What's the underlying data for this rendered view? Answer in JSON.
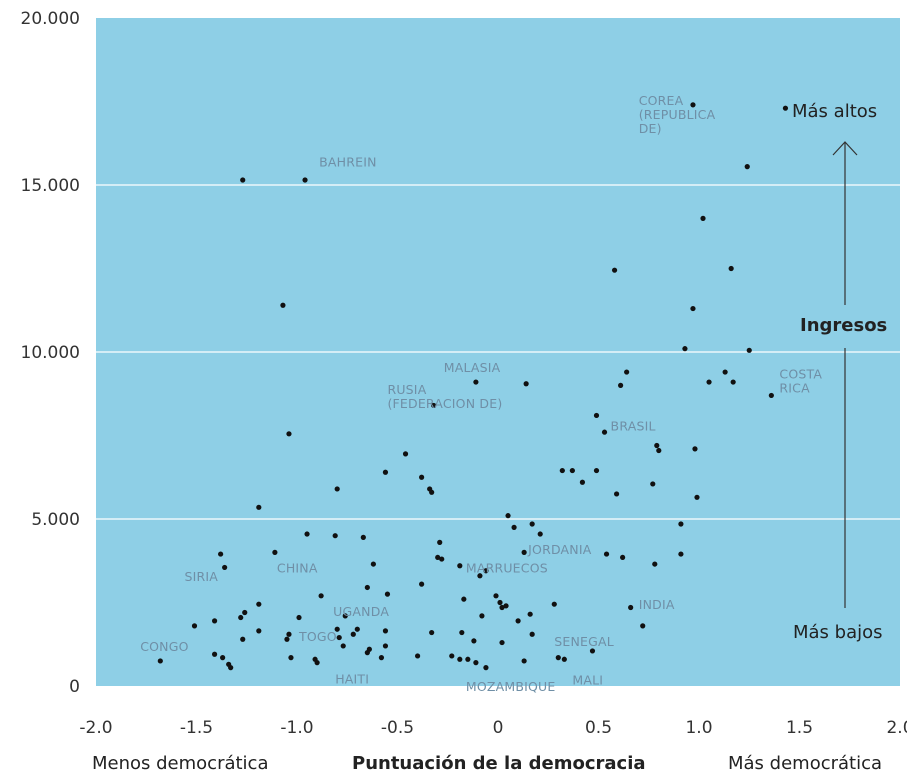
{
  "chart_data": {
    "type": "scatter",
    "title": "",
    "xlabel": "Puntuación de la democracia",
    "x_left_label": "Menos democrática",
    "x_right_label": "Más democrática",
    "ylabel": "Ingresos",
    "y_top_label": "Más altos",
    "y_bottom_label": "Más bajos",
    "xlim": [
      -2.0,
      2.0
    ],
    "ylim": [
      0,
      20000
    ],
    "xticks": [
      -2.0,
      -1.5,
      -1.0,
      -0.5,
      0,
      0.5,
      1.0,
      1.5,
      2.0
    ],
    "xtick_labels": [
      "-2.0",
      "-1.5",
      "-1.0",
      "-0.5",
      "0",
      "0.5",
      "1.0",
      "1.5",
      "2.0"
    ],
    "yticks": [
      0,
      5000,
      10000,
      15000,
      20000
    ],
    "ytick_labels": [
      "0",
      "5.000",
      "10.000",
      "15.000",
      "20.000"
    ],
    "grid": true,
    "colors": {
      "background": "#8ecfe6",
      "gridline": "#ffffff",
      "point": "#111111",
      "label": "#6f8fa6"
    },
    "points": [
      {
        "x": 0.97,
        "y": 17400,
        "label": "COREA (REPUBLICA DE)"
      },
      {
        "x": 1.43,
        "y": 17300
      },
      {
        "x": -1.27,
        "y": 15150
      },
      {
        "x": -0.96,
        "y": 15150,
        "label": "BAHREIN"
      },
      {
        "x": 1.24,
        "y": 15550
      },
      {
        "x": 1.02,
        "y": 14000
      },
      {
        "x": 0.58,
        "y": 12450
      },
      {
        "x": 1.16,
        "y": 12500
      },
      {
        "x": -1.07,
        "y": 11400
      },
      {
        "x": 0.97,
        "y": 11300
      },
      {
        "x": 0.93,
        "y": 10100
      },
      {
        "x": 1.25,
        "y": 10050
      },
      {
        "x": -0.11,
        "y": 9100,
        "label": "MALASIA"
      },
      {
        "x": 0.14,
        "y": 9050
      },
      {
        "x": 0.61,
        "y": 9000
      },
      {
        "x": 0.64,
        "y": 9400
      },
      {
        "x": 1.05,
        "y": 9100
      },
      {
        "x": 1.13,
        "y": 9400
      },
      {
        "x": 1.17,
        "y": 9100
      },
      {
        "x": 1.36,
        "y": 8700,
        "label": "COSTA RICA"
      },
      {
        "x": -0.32,
        "y": 8400,
        "label": "RUSIA (FEDERACION DE)"
      },
      {
        "x": 0.49,
        "y": 8100
      },
      {
        "x": 0.53,
        "y": 7600,
        "label": "BRASIL"
      },
      {
        "x": -1.04,
        "y": 7550
      },
      {
        "x": 0.79,
        "y": 7200
      },
      {
        "x": 0.8,
        "y": 7050
      },
      {
        "x": 0.98,
        "y": 7100
      },
      {
        "x": -0.46,
        "y": 6950
      },
      {
        "x": -0.56,
        "y": 6400
      },
      {
        "x": -0.38,
        "y": 6250
      },
      {
        "x": 0.32,
        "y": 6450
      },
      {
        "x": 0.37,
        "y": 6450
      },
      {
        "x": 0.42,
        "y": 6100
      },
      {
        "x": 0.49,
        "y": 6450
      },
      {
        "x": 0.77,
        "y": 6050
      },
      {
        "x": -0.8,
        "y": 5900
      },
      {
        "x": -0.34,
        "y": 5900
      },
      {
        "x": -0.33,
        "y": 5800
      },
      {
        "x": 0.59,
        "y": 5750
      },
      {
        "x": 0.99,
        "y": 5650
      },
      {
        "x": -1.19,
        "y": 5350
      },
      {
        "x": 0.05,
        "y": 5100
      },
      {
        "x": 0.08,
        "y": 4750
      },
      {
        "x": 0.17,
        "y": 4850
      },
      {
        "x": 0.21,
        "y": 4550
      },
      {
        "x": -0.95,
        "y": 4550
      },
      {
        "x": -0.81,
        "y": 4500
      },
      {
        "x": -0.67,
        "y": 4450
      },
      {
        "x": -0.29,
        "y": 4300
      },
      {
        "x": 0.91,
        "y": 4850
      },
      {
        "x": -1.38,
        "y": 3950,
        "label": "SIRIA"
      },
      {
        "x": -1.36,
        "y": 3550
      },
      {
        "x": -1.11,
        "y": 4000,
        "label": "CHINA"
      },
      {
        "x": -0.3,
        "y": 3850
      },
      {
        "x": -0.28,
        "y": 3800
      },
      {
        "x": 0.13,
        "y": 4000,
        "label": "JORDANIA"
      },
      {
        "x": 0.54,
        "y": 3950
      },
      {
        "x": 0.62,
        "y": 3850
      },
      {
        "x": 0.91,
        "y": 3950
      },
      {
        "x": -0.62,
        "y": 3650
      },
      {
        "x": -0.19,
        "y": 3600
      },
      {
        "x": -0.09,
        "y": 3300,
        "label": "MARRUECOS"
      },
      {
        "x": -0.06,
        "y": 3450
      },
      {
        "x": 0.78,
        "y": 3650
      },
      {
        "x": -0.38,
        "y": 3050
      },
      {
        "x": -0.65,
        "y": 2950
      },
      {
        "x": -0.88,
        "y": 2700
      },
      {
        "x": -0.55,
        "y": 2750
      },
      {
        "x": -0.17,
        "y": 2600
      },
      {
        "x": -0.08,
        "y": 2100
      },
      {
        "x": -0.01,
        "y": 2700
      },
      {
        "x": 0.01,
        "y": 2500
      },
      {
        "x": 0.02,
        "y": 2350
      },
      {
        "x": 0.04,
        "y": 2400
      },
      {
        "x": 0.28,
        "y": 2450
      },
      {
        "x": 0.66,
        "y": 2350,
        "label": "INDIA"
      },
      {
        "x": -1.19,
        "y": 2450
      },
      {
        "x": -1.28,
        "y": 2050
      },
      {
        "x": -1.26,
        "y": 2200
      },
      {
        "x": -1.41,
        "y": 1950
      },
      {
        "x": -1.51,
        "y": 1800
      },
      {
        "x": -0.99,
        "y": 2050
      },
      {
        "x": -0.76,
        "y": 2100,
        "label": "UGANDA"
      },
      {
        "x": 0.1,
        "y": 1950
      },
      {
        "x": 0.16,
        "y": 2150
      },
      {
        "x": -0.8,
        "y": 1700
      },
      {
        "x": -0.72,
        "y": 1550
      },
      {
        "x": -0.7,
        "y": 1700
      },
      {
        "x": -0.56,
        "y": 1650
      },
      {
        "x": -0.33,
        "y": 1600
      },
      {
        "x": -0.18,
        "y": 1600
      },
      {
        "x": 0.17,
        "y": 1550
      },
      {
        "x": 0.72,
        "y": 1800
      },
      {
        "x": -1.19,
        "y": 1650
      },
      {
        "x": -1.27,
        "y": 1400
      },
      {
        "x": -1.04,
        "y": 1550
      },
      {
        "x": -1.05,
        "y": 1400,
        "label": "TOGO"
      },
      {
        "x": -0.79,
        "y": 1450
      },
      {
        "x": -0.77,
        "y": 1200
      },
      {
        "x": -0.64,
        "y": 1100
      },
      {
        "x": -0.56,
        "y": 1200
      },
      {
        "x": -0.12,
        "y": 1350
      },
      {
        "x": 0.02,
        "y": 1300
      },
      {
        "x": -1.41,
        "y": 950
      },
      {
        "x": -1.37,
        "y": 850
      },
      {
        "x": -1.34,
        "y": 650
      },
      {
        "x": -1.33,
        "y": 550
      },
      {
        "x": -1.68,
        "y": 750,
        "label": "CONGO"
      },
      {
        "x": -1.03,
        "y": 850
      },
      {
        "x": -0.91,
        "y": 800
      },
      {
        "x": -0.9,
        "y": 700,
        "label": "HAITI"
      },
      {
        "x": -0.65,
        "y": 1000
      },
      {
        "x": -0.58,
        "y": 850
      },
      {
        "x": -0.4,
        "y": 900
      },
      {
        "x": -0.23,
        "y": 900
      },
      {
        "x": -0.19,
        "y": 800
      },
      {
        "x": -0.15,
        "y": 800
      },
      {
        "x": -0.11,
        "y": 700
      },
      {
        "x": -0.06,
        "y": 550,
        "label": "MOZAMBIQUE"
      },
      {
        "x": 0.13,
        "y": 750
      },
      {
        "x": 0.3,
        "y": 850,
        "label": "MALI"
      },
      {
        "x": 0.33,
        "y": 800
      },
      {
        "x": 0.47,
        "y": 1050,
        "label": "SENEGAL"
      }
    ],
    "annotations": [
      {
        "lines": [
          "COREA",
          "(REPUBLICA",
          "DE)"
        ],
        "x": 0.7,
        "y": 17400
      },
      {
        "lines": [
          "BAHREIN"
        ],
        "x": -0.89,
        "y": 15550
      },
      {
        "lines": [
          "MALASIA"
        ],
        "x": -0.27,
        "y": 9400
      },
      {
        "lines": [
          "RUSIA",
          "(FEDERACION DE)"
        ],
        "x": -0.55,
        "y": 8750
      },
      {
        "lines": [
          "COSTA",
          "RICA"
        ],
        "x": 1.4,
        "y": 9200
      },
      {
        "lines": [
          "BRASIL"
        ],
        "x": 0.56,
        "y": 7650
      },
      {
        "lines": [
          "SIRIA"
        ],
        "x": -1.56,
        "y": 3150
      },
      {
        "lines": [
          "CHINA"
        ],
        "x": -1.1,
        "y": 3400
      },
      {
        "lines": [
          "JORDANIA"
        ],
        "x": 0.15,
        "y": 3950
      },
      {
        "lines": [
          "MARRUECOS"
        ],
        "x": -0.16,
        "y": 3400
      },
      {
        "lines": [
          "INDIA"
        ],
        "x": 0.7,
        "y": 2300
      },
      {
        "lines": [
          "UGANDA"
        ],
        "x": -0.82,
        "y": 2100
      },
      {
        "lines": [
          "TOGO"
        ],
        "x": -0.99,
        "y": 1350
      },
      {
        "lines": [
          "CONGO"
        ],
        "x": -1.78,
        "y": 1050
      },
      {
        "lines": [
          "SENEGAL"
        ],
        "x": 0.28,
        "y": 1200
      },
      {
        "lines": [
          "HAITI"
        ],
        "x": -0.81,
        "y": 80
      },
      {
        "lines": [
          "MOZAMBIQUE"
        ],
        "x": -0.16,
        "y": -150
      },
      {
        "lines": [
          "MALI"
        ],
        "x": 0.37,
        "y": 50
      }
    ]
  }
}
